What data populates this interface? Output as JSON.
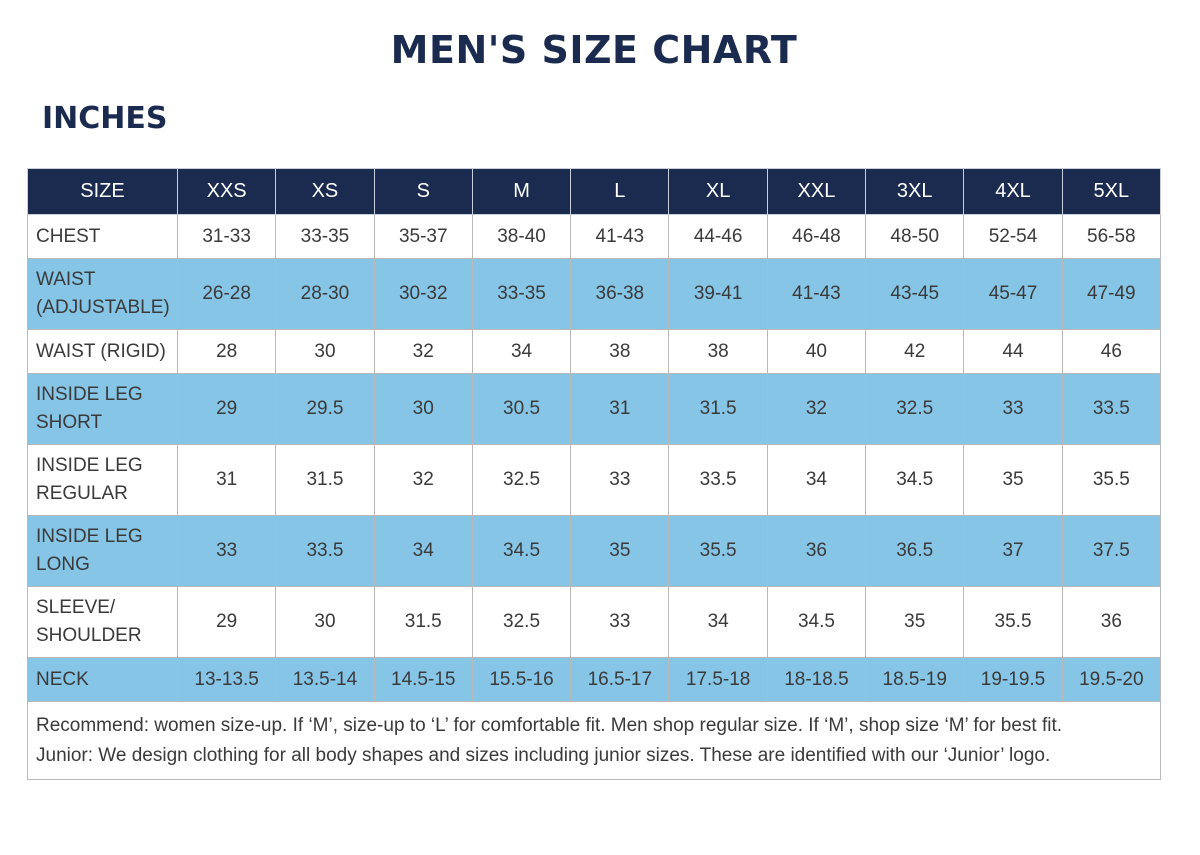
{
  "title": "MEN'S SIZE CHART",
  "unit_heading": "INCHES",
  "table": {
    "header": [
      "SIZE",
      "XXS",
      "XS",
      "S",
      "M",
      "L",
      "XL",
      "XXL",
      "3XL",
      "4XL",
      "5XL"
    ],
    "rows": [
      {
        "label_lines": [
          "CHEST"
        ],
        "values": [
          "31-33",
          "33-35",
          "35-37",
          "38-40",
          "41-43",
          "44-46",
          "46-48",
          "48-50",
          "52-54",
          "56-58"
        ]
      },
      {
        "label_lines": [
          "WAIST",
          "(ADJUSTABLE)"
        ],
        "values": [
          "26-28",
          "28-30",
          "30-32",
          "33-35",
          "36-38",
          "39-41",
          "41-43",
          "43-45",
          "45-47",
          "47-49"
        ]
      },
      {
        "label_lines": [
          "WAIST (RIGID)"
        ],
        "values": [
          "28",
          "30",
          "32",
          "34",
          "38",
          "38",
          "40",
          "42",
          "44",
          "46"
        ]
      },
      {
        "label_lines": [
          "INSIDE LEG",
          "SHORT"
        ],
        "values": [
          "29",
          "29.5",
          "30",
          "30.5",
          "31",
          "31.5",
          "32",
          "32.5",
          "33",
          "33.5"
        ]
      },
      {
        "label_lines": [
          "INSIDE LEG",
          "REGULAR"
        ],
        "values": [
          "31",
          "31.5",
          "32",
          "32.5",
          "33",
          "33.5",
          "34",
          "34.5",
          "35",
          "35.5"
        ]
      },
      {
        "label_lines": [
          "INSIDE LEG",
          "LONG"
        ],
        "values": [
          "33",
          "33.5",
          "34",
          "34.5",
          "35",
          "35.5",
          "36",
          "36.5",
          "37",
          "37.5"
        ]
      },
      {
        "label_lines": [
          "SLEEVE/",
          "SHOULDER"
        ],
        "values": [
          "29",
          "30",
          "31.5",
          "32.5",
          "33",
          "34",
          "34.5",
          "35",
          "35.5",
          "36"
        ]
      },
      {
        "label_lines": [
          "NECK"
        ],
        "values": [
          "13-13.5",
          "13.5-14",
          "14.5-15",
          "15.5-16",
          "16.5-17",
          "17.5-18",
          "18-18.5",
          "18.5-19",
          "19-19.5",
          "19.5-20"
        ]
      }
    ]
  },
  "notes": {
    "recommend": "Recommend: women size-up. If ‘M’, size-up to ‘L’ for comfortable fit. Men shop regular size. If ‘M’, shop size ‘M’ for best fit.",
    "junior": "Junior: We design clothing for all body shapes and sizes including junior sizes. These are identified with our ‘Junior’ logo."
  },
  "colors": {
    "header_bg": "#1b2b4f",
    "title": "#1b2b4f",
    "stripe_blue": "#87c5e6",
    "stripe_white": "#ffffff"
  }
}
